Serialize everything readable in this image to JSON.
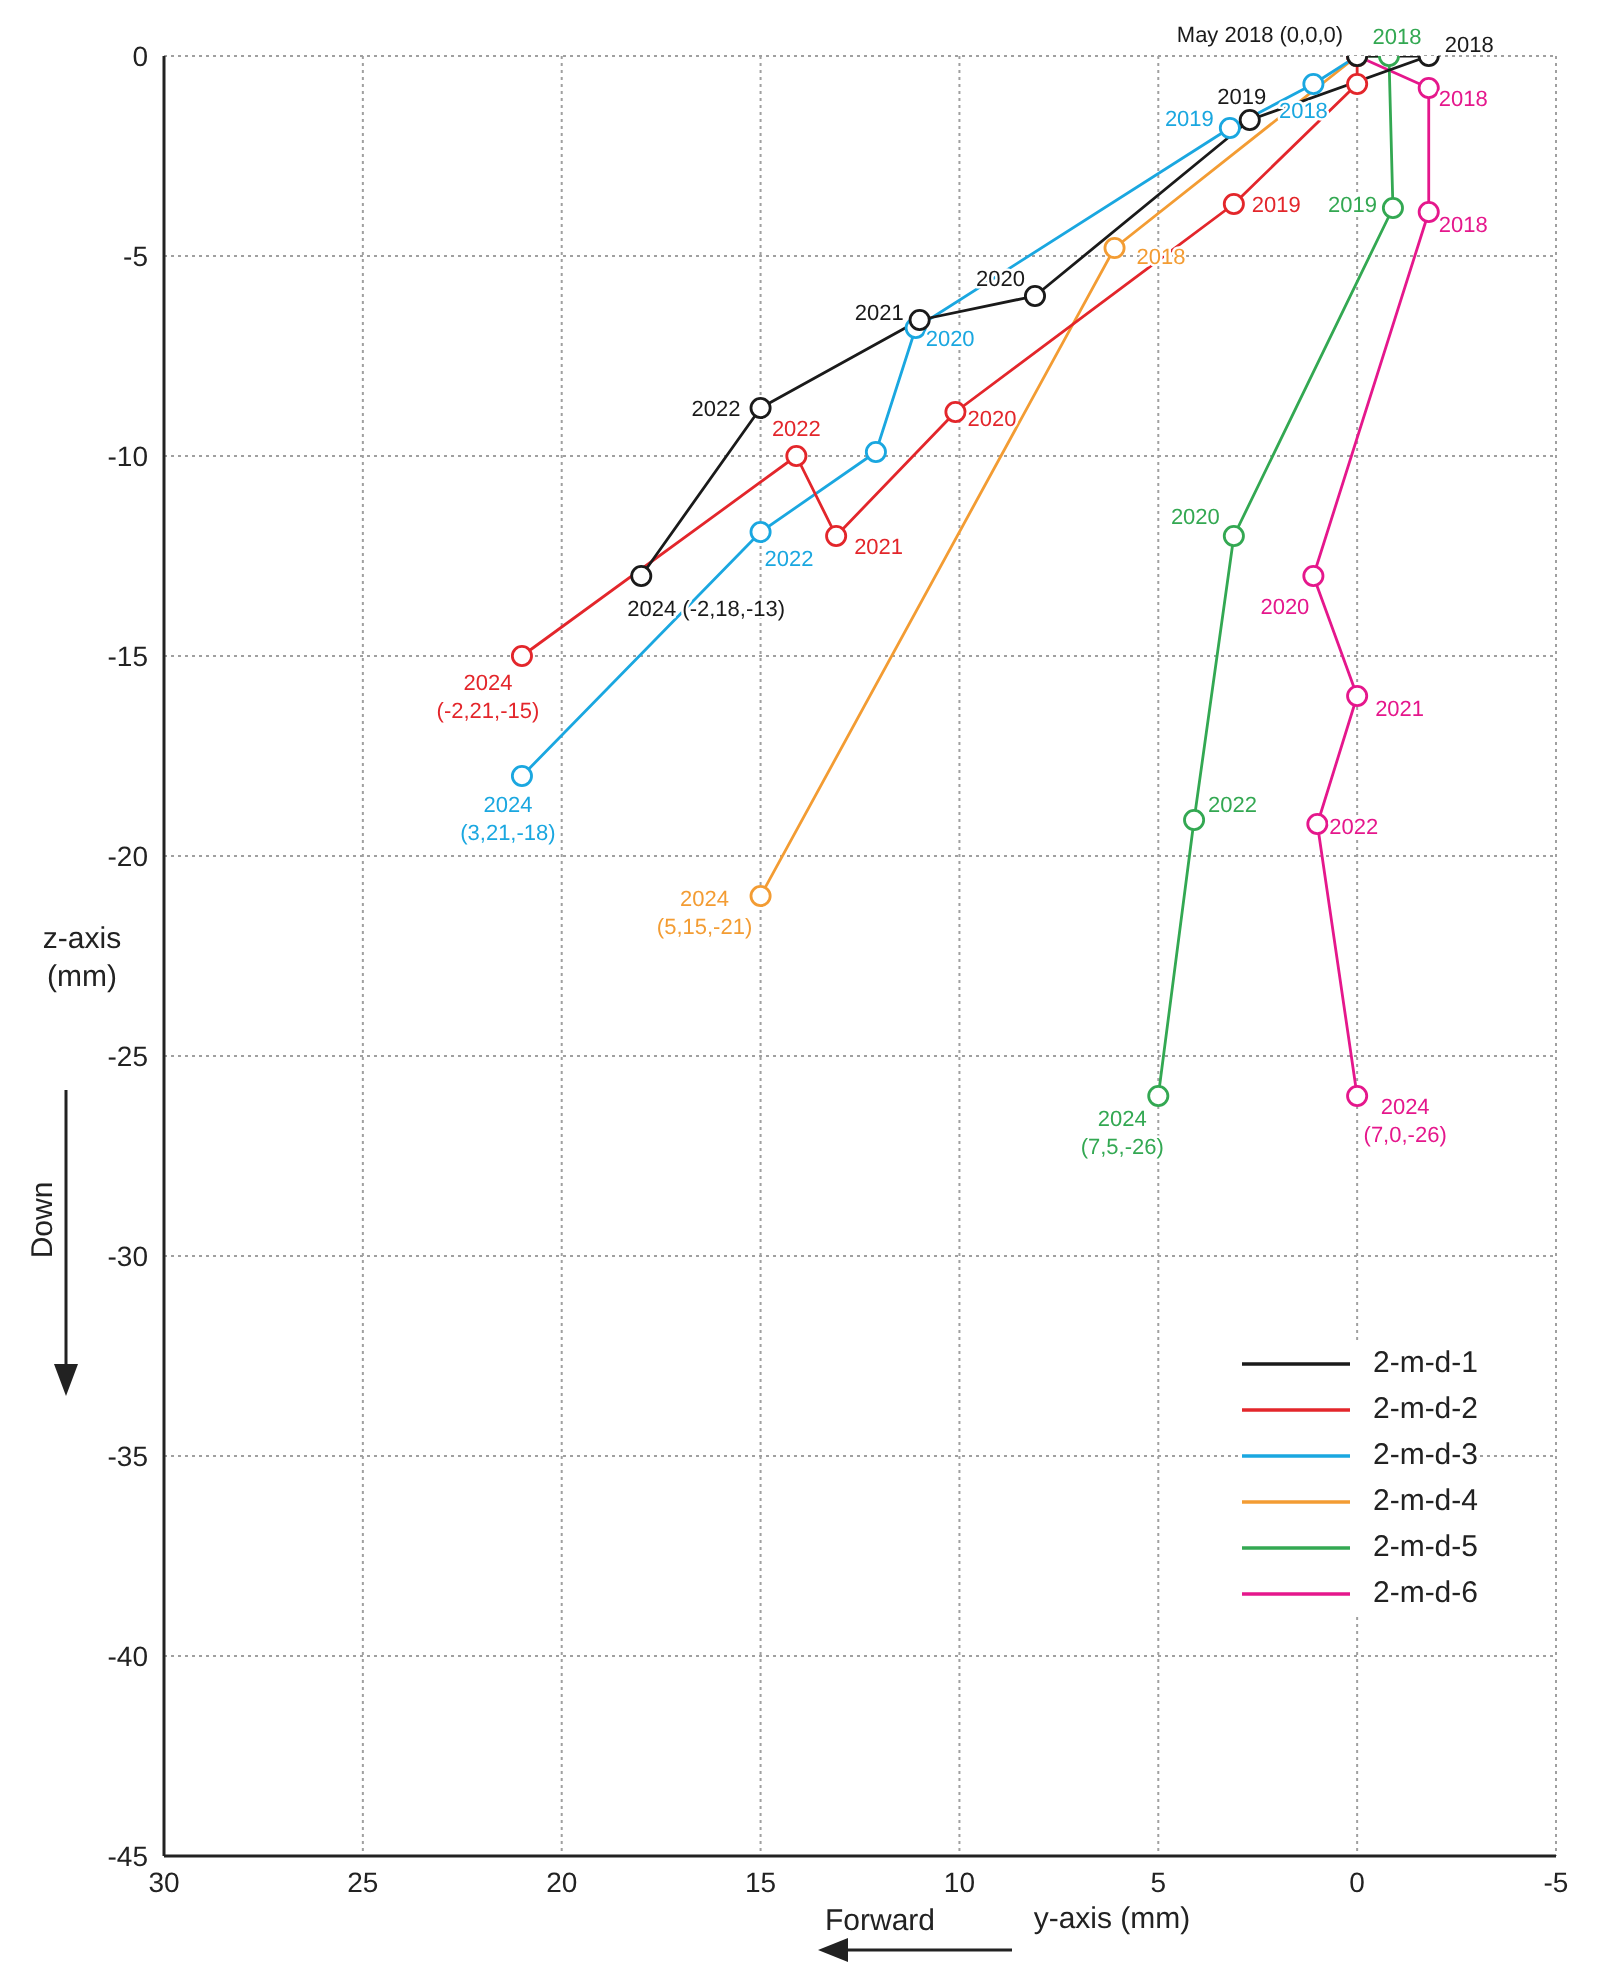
{
  "chart_data": {
    "type": "line",
    "xlabel": "y-axis (mm)",
    "ylabel": "z-axis (mm)",
    "xlim": [
      30,
      -5
    ],
    "xticks": [
      30,
      25,
      20,
      15,
      10,
      5,
      0,
      -5
    ],
    "ylim": [
      -45,
      0
    ],
    "yticks": [
      -45,
      -40,
      -35,
      -30,
      -25,
      -20,
      -15,
      -10,
      -5,
      0
    ],
    "grid": true,
    "legend": "bottom right",
    "marker": "circle",
    "line_style": "solid",
    "annotations": [
      "Forward",
      "Down",
      {
        "text": "May 2018 (0,0,0)",
        "x": 0,
        "y": 0
      },
      {
        "text": "2018",
        "x": -1.8,
        "y": 0
      },
      {
        "text": "2019",
        "x": 2.7,
        "y": -1.6
      },
      {
        "text": "2020",
        "x": 8.1,
        "y": -6
      },
      {
        "text": "2021",
        "x": 11,
        "y": -6.6
      },
      {
        "text": "2022",
        "x": 15,
        "y": -8.8
      },
      {
        "text": "2024 (-2,18,-13)",
        "x": 18,
        "y": -13
      },
      {
        "text": "2019",
        "x": 3.1,
        "y": -3.7
      },
      {
        "text": "2020",
        "x": 10.1,
        "y": -8.9
      },
      {
        "text": "2021",
        "x": 13.1,
        "y": -12
      },
      {
        "text": "2022",
        "x": 14.1,
        "y": -10
      },
      {
        "text": "2024 (-2,21,-15)",
        "x": 21,
        "y": -15
      },
      {
        "text": "2018",
        "x": 1.1,
        "y": -0.7
      },
      {
        "text": "2019",
        "x": 3.2,
        "y": -1.8
      },
      {
        "text": "2020",
        "x": 11.1,
        "y": -6.8
      },
      {
        "text": "2022",
        "x": 15,
        "y": -11.9
      },
      {
        "text": "2024 (3,21,-18)",
        "x": 21,
        "y": -18
      },
      {
        "text": "2018",
        "x": 6.1,
        "y": -4.8
      },
      {
        "text": "2024 (5,15,-21)",
        "x": 15,
        "y": -21
      },
      {
        "text": "2018",
        "x": -0.8,
        "y": 0
      },
      {
        "text": "2019",
        "x": -0.9,
        "y": -3.8
      },
      {
        "text": "2020",
        "x": 3.1,
        "y": -12
      },
      {
        "text": "2022",
        "x": 4.1,
        "y": -19.1
      },
      {
        "text": "2024 (7,5,-26)",
        "x": 5,
        "y": -26
      },
      {
        "text": "2018",
        "x": -1.8,
        "y": -0.8
      },
      {
        "text": "2018",
        "x": -1.8,
        "y": -3.9
      },
      {
        "text": "2020",
        "x": 1.1,
        "y": -13
      },
      {
        "text": "2021",
        "x": 0,
        "y": -16
      },
      {
        "text": "2022",
        "x": 1,
        "y": -19.2
      },
      {
        "text": "2024 (7,0,-26)",
        "x": 0,
        "y": -26
      }
    ],
    "series": [
      {
        "name": "2-m-d-1",
        "color": "#1a1a1a",
        "x": [
          0,
          -1.8,
          2.7,
          8.1,
          11,
          15,
          18
        ],
        "values": [
          0,
          0,
          -1.6,
          -6,
          -6.6,
          -8.8,
          -13
        ]
      },
      {
        "name": "2-m-d-2",
        "color": "#e3262b",
        "x": [
          0,
          0,
          3.1,
          10.1,
          13.1,
          14.1,
          21
        ],
        "values": [
          0,
          -0.7,
          -3.7,
          -8.9,
          -12,
          -10,
          -15
        ]
      },
      {
        "name": "2-m-d-3",
        "color": "#1aa7e0",
        "x": [
          0,
          1.1,
          3.2,
          11.1,
          12.1,
          15,
          21
        ],
        "values": [
          0,
          -0.7,
          -1.8,
          -6.8,
          -9.9,
          -11.9,
          -18
        ]
      },
      {
        "name": "2-m-d-4",
        "color": "#f39c33",
        "x": [
          0,
          6.1,
          15
        ],
        "values": [
          0,
          -4.8,
          -21
        ]
      },
      {
        "name": "2-m-d-5",
        "color": "#33a852",
        "x": [
          0,
          -0.8,
          -0.9,
          3.1,
          4.1,
          5
        ],
        "values": [
          0,
          0,
          -3.8,
          -12,
          -19.1,
          -26
        ]
      },
      {
        "name": "2-m-d-6",
        "color": "#e5178c",
        "x": [
          0,
          -1.8,
          -1.8,
          1.1,
          0,
          1,
          0
        ],
        "values": [
          0,
          -0.8,
          -3.9,
          -13,
          -16,
          -19.2,
          -26
        ]
      }
    ]
  }
}
